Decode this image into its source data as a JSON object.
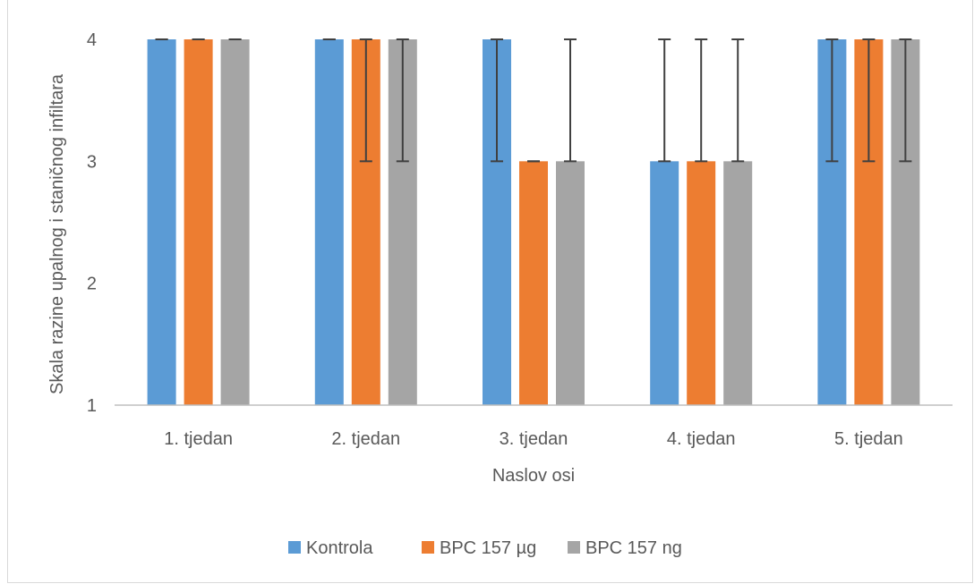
{
  "chart_data": {
    "type": "bar",
    "title": "",
    "xlabel": "Naslov osi",
    "ylabel": "Skala razine upalnog i staničnog infiltara",
    "ylim": [
      1,
      4
    ],
    "yticks": [
      1,
      2,
      3,
      4
    ],
    "grid": false,
    "legend_position": "bottom",
    "categories": [
      "1. tjedan",
      "2. tjedan",
      "3. tjedan",
      "4. tjedan",
      "5. tjedan"
    ],
    "series": [
      {
        "name": "Kontrola",
        "color": "#5b9bd5",
        "values": [
          4,
          4,
          4,
          3,
          4
        ],
        "error_low": [
          4,
          4,
          3,
          3,
          3
        ],
        "error_high": [
          4,
          4,
          4,
          4,
          4
        ]
      },
      {
        "name": "BPC 157  µg",
        "color": "#ed7d31",
        "values": [
          4,
          4,
          3,
          3,
          4
        ],
        "error_low": [
          4,
          3,
          3,
          3,
          3
        ],
        "error_high": [
          4,
          4,
          3,
          4,
          4
        ]
      },
      {
        "name": "BPC 157 ng",
        "color": "#a5a5a5",
        "values": [
          4,
          4,
          3,
          3,
          4
        ],
        "error_low": [
          4,
          3,
          3,
          3,
          3
        ],
        "error_high": [
          4,
          4,
          4,
          4,
          4
        ]
      }
    ]
  }
}
